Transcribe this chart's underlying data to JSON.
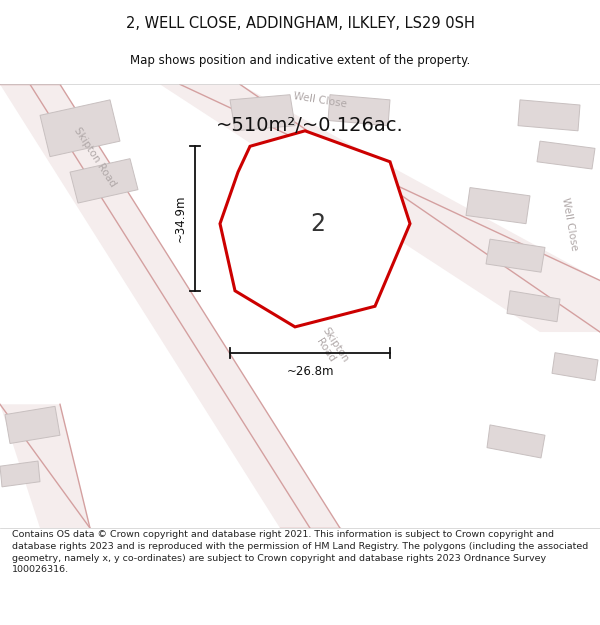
{
  "title": "2, WELL CLOSE, ADDINGHAM, ILKLEY, LS29 0SH",
  "subtitle": "Map shows position and indicative extent of the property.",
  "footer": "Contains OS data © Crown copyright and database right 2021. This information is subject to Crown copyright and database rights 2023 and is reproduced with the permission of HM Land Registry. The polygons (including the associated geometry, namely x, y co-ordinates) are subject to Crown copyright and database rights 2023 Ordnance Survey 100026316.",
  "area_label": "~510m²/~0.126ac.",
  "plot_number": "2",
  "dim_width": "~26.8m",
  "dim_height": "~34.9m",
  "map_bg": "#f2efef",
  "building_fill": "#e0d8d8",
  "building_edge": "#c8c0c0",
  "plot_outline_color": "#cc0000",
  "plot_fill": "#ffffff",
  "road_fill": "#f5eded",
  "road_edge": "#d4a0a0",
  "street_text_color": "#b0a8a8",
  "dim_color": "#111111",
  "title_color": "#111111",
  "footer_color": "#222222"
}
